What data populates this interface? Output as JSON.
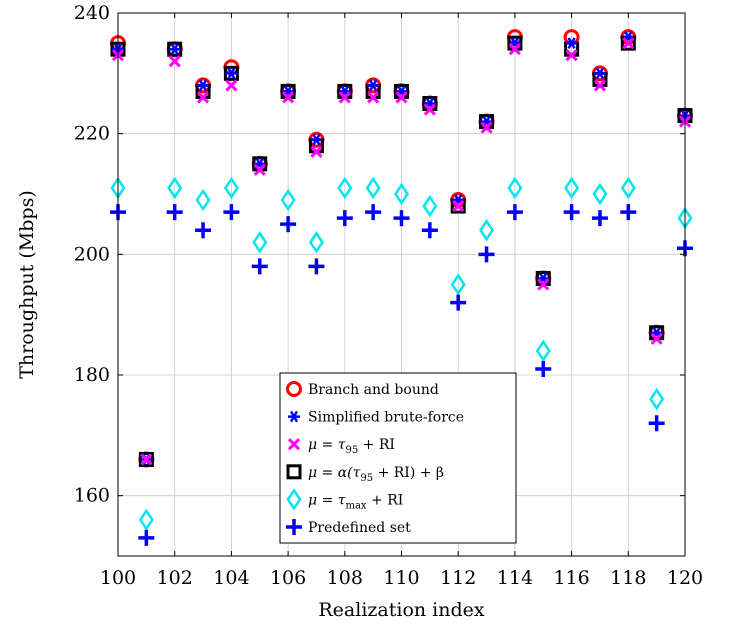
{
  "chart_data": {
    "type": "scatter",
    "xlabel": "Realization index",
    "ylabel": "Throughput (Mbps)",
    "xlim": [
      100,
      120
    ],
    "ylim": [
      150,
      240
    ],
    "xticks": [
      100,
      102,
      104,
      106,
      108,
      110,
      112,
      114,
      116,
      118,
      120
    ],
    "yticks": [
      160,
      180,
      200,
      220,
      240
    ],
    "grid": true,
    "legend_position": "bottom-center",
    "x": [
      100,
      101,
      102,
      103,
      104,
      105,
      106,
      107,
      108,
      109,
      110,
      111,
      112,
      113,
      114,
      115,
      116,
      117,
      118,
      119,
      120
    ],
    "series": [
      {
        "name": "Branch and bound",
        "marker": "circle",
        "color": "#ff0000",
        "values": [
          235,
          166,
          234,
          228,
          231,
          215,
          227,
          219,
          227,
          228,
          227,
          225,
          209,
          222,
          236,
          196,
          236,
          230,
          236,
          187,
          223
        ]
      },
      {
        "name": "Simplified brute-force",
        "marker": "asterisk",
        "color": "#0000ff",
        "values": [
          234,
          166,
          234,
          228,
          230,
          215,
          227,
          219,
          227,
          228,
          227,
          225,
          209,
          222,
          235,
          196,
          235,
          230,
          236,
          187,
          223
        ]
      },
      {
        "name": "μ = τ95 + RI",
        "marker": "x",
        "color": "#ff00ff",
        "values": [
          233,
          166,
          232,
          226,
          228,
          214,
          226,
          217,
          226,
          226,
          226,
          224,
          208,
          221,
          234,
          195,
          233,
          228,
          235,
          186,
          222
        ]
      },
      {
        "name": "μ = α(τ95 + RI) + β",
        "marker": "square",
        "color": "#000000",
        "values": [
          234,
          166,
          234,
          227,
          230,
          215,
          227,
          218,
          227,
          227,
          227,
          225,
          208,
          222,
          235,
          196,
          234,
          229,
          235,
          187,
          223
        ]
      },
      {
        "name": "μ = τmax + RI",
        "marker": "diamond",
        "color": "#00e5ee",
        "values": [
          211,
          156,
          211,
          209,
          211,
          202,
          209,
          202,
          211,
          211,
          210,
          208,
          195,
          204,
          211,
          184,
          211,
          210,
          211,
          176,
          206
        ]
      },
      {
        "name": "Predefined set",
        "marker": "plus",
        "color": "#0000ff",
        "values": [
          207,
          153,
          207,
          204,
          207,
          198,
          205,
          198,
          206,
          207,
          206,
          204,
          192,
          200,
          207,
          181,
          207,
          206,
          207,
          172,
          201
        ]
      }
    ]
  }
}
